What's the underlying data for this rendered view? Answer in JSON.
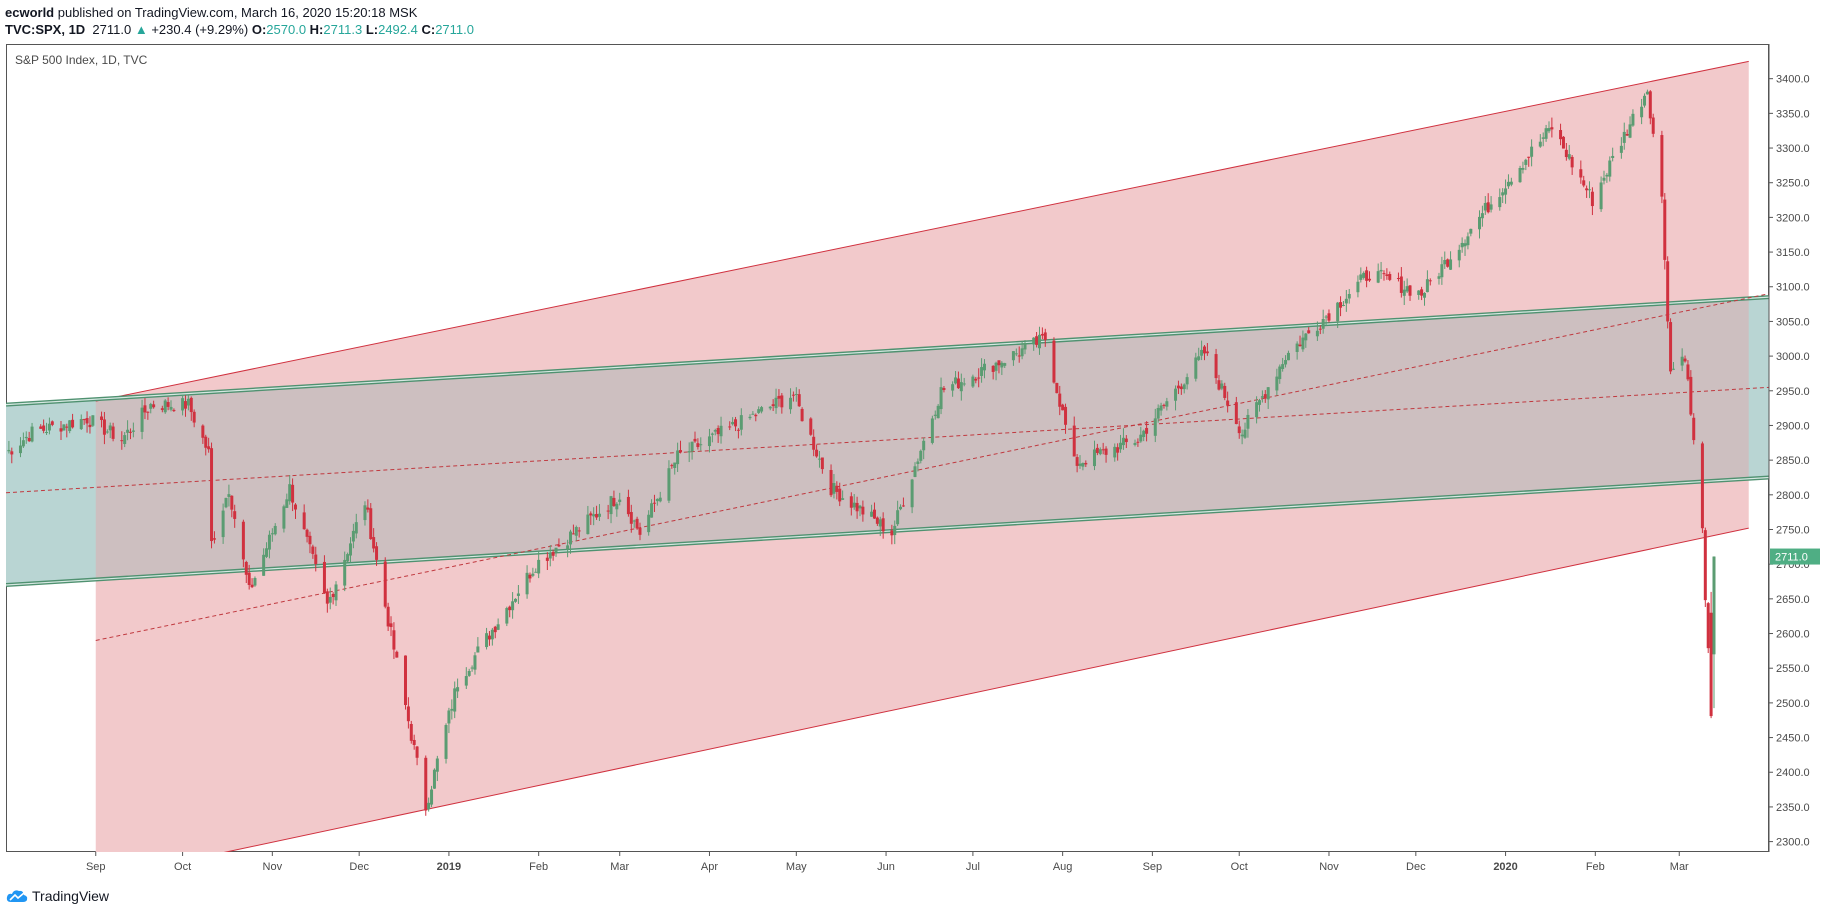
{
  "header": {
    "author": "ecworld",
    "published_text": " published on TradingView.com, March 16, 2020 15:20:18 MSK",
    "symbol": "TVC:SPX, 1D",
    "last": "2711.0",
    "change_arrow": "▲",
    "change": "+230.4 (+9.29%)",
    "o_label": "O:",
    "o": "2570.0",
    "h_label": "H:",
    "h": "2711.3",
    "l_label": "L:",
    "l": "2492.4",
    "c_label": "C:",
    "c": "2711.0"
  },
  "footer": {
    "brand": "TradingView",
    "logo_icon": "tradingview-cloud-icon"
  },
  "colors": {
    "up": "#5b9c72",
    "down": "#d0313f",
    "price_tag": "#4fae84",
    "red_channel_fill": "#f2c9cb",
    "red_channel_line": "#d0313f",
    "green_channel_fill": "#b9d5d3",
    "green_channel_line": "#4f9170",
    "overlap_fill": "#cdbfc0",
    "midline": "#c0393f",
    "axis_text": "#4a4a4a"
  },
  "chart_data": {
    "type": "candlestick",
    "title": "S&P 500 Index, 1D, TVC",
    "interval": "1D",
    "x_ticks": [
      "Sep",
      "Oct",
      "Nov",
      "Dec",
      "2019",
      "Feb",
      "Mar",
      "Apr",
      "May",
      "Jun",
      "Jul",
      "Aug",
      "Sep",
      "Oct",
      "Nov",
      "Dec",
      "2020",
      "Feb",
      "Mar"
    ],
    "x_tick_dates": [
      "2018-09-01",
      "2018-10-01",
      "2018-11-01",
      "2018-12-01",
      "2019-01-01",
      "2019-02-01",
      "2019-03-01",
      "2019-04-01",
      "2019-05-01",
      "2019-06-01",
      "2019-07-01",
      "2019-08-01",
      "2019-09-01",
      "2019-10-01",
      "2019-11-01",
      "2019-12-01",
      "2020-01-01",
      "2020-02-01",
      "2020-03-01"
    ],
    "x_range": [
      "2018-08-01",
      "2020-04-01"
    ],
    "y_ticks": [
      2300,
      2350,
      2400,
      2450,
      2500,
      2550,
      2600,
      2650,
      2700,
      2750,
      2800,
      2850,
      2900,
      2950,
      3000,
      3050,
      3100,
      3150,
      3200,
      3250,
      3300,
      3350,
      3400,
      3450
    ],
    "y_range": [
      2285,
      3450
    ],
    "last_price_label": "2711.0",
    "last_price": 2711.0,
    "price_anchors": [
      [
        "2018-08-01",
        2860
      ],
      [
        "2018-08-10",
        2890
      ],
      [
        "2018-08-29",
        2910
      ],
      [
        "2018-09-10",
        2880
      ],
      [
        "2018-09-20",
        2930
      ],
      [
        "2018-10-03",
        2930
      ],
      [
        "2018-10-10",
        2860
      ],
      [
        "2018-10-11",
        2730
      ],
      [
        "2018-10-17",
        2810
      ],
      [
        "2018-10-24",
        2660
      ],
      [
        "2018-11-07",
        2810
      ],
      [
        "2018-11-20",
        2640
      ],
      [
        "2018-12-03",
        2790
      ],
      [
        "2018-12-10",
        2640
      ],
      [
        "2018-12-24",
        2350
      ],
      [
        "2019-01-04",
        2530
      ],
      [
        "2019-01-31",
        2700
      ],
      [
        "2019-03-01",
        2800
      ],
      [
        "2019-03-08",
        2745
      ],
      [
        "2019-03-21",
        2855
      ],
      [
        "2019-04-30",
        2945
      ],
      [
        "2019-05-13",
        2810
      ],
      [
        "2019-06-03",
        2745
      ],
      [
        "2019-06-20",
        2950
      ],
      [
        "2019-07-26",
        3025
      ],
      [
        "2019-08-05",
        2845
      ],
      [
        "2019-08-27",
        2880
      ],
      [
        "2019-09-19",
        3005
      ],
      [
        "2019-10-02",
        2890
      ],
      [
        "2019-10-17",
        3000
      ],
      [
        "2019-11-15",
        3120
      ],
      [
        "2019-12-03",
        3090
      ],
      [
        "2020-01-02",
        3255
      ],
      [
        "2020-01-17",
        3330
      ],
      [
        "2020-01-31",
        3225
      ],
      [
        "2020-02-19",
        3386
      ],
      [
        "2020-02-24",
        3225
      ],
      [
        "2020-02-27",
        2978
      ],
      [
        "2020-03-03",
        3003
      ],
      [
        "2020-03-09",
        2746
      ],
      [
        "2020-03-12",
        2480
      ],
      [
        "2020-03-13",
        2711
      ]
    ],
    "final_candles": [
      {
        "date": "2020-03-12",
        "open": 2630,
        "high": 2660,
        "low": 2478,
        "close": 2481
      },
      {
        "date": "2020-03-13",
        "open": 2570.0,
        "high": 2711.3,
        "low": 2492.4,
        "close": 2711.0
      }
    ],
    "drawings": {
      "red_channel": {
        "top": [
          [
            "2018-09-01",
            2935
          ],
          [
            "2020-03-25",
            3425
          ]
        ],
        "bottom": [
          [
            "2018-09-01",
            2245
          ],
          [
            "2020-03-25",
            2752
          ]
        ]
      },
      "green_channel": {
        "top": [
          [
            "2018-08-01",
            2930
          ],
          [
            "2020-04-01",
            3085
          ]
        ],
        "bottom": [
          [
            "2018-08-01",
            2670
          ],
          [
            "2020-04-01",
            2825
          ]
        ]
      },
      "midlines": [
        [
          [
            "2018-08-01",
            2803
          ],
          [
            "2020-04-01",
            2955
          ]
        ],
        [
          [
            "2018-09-01",
            2590
          ],
          [
            "2020-04-01",
            3090
          ]
        ]
      ]
    }
  }
}
